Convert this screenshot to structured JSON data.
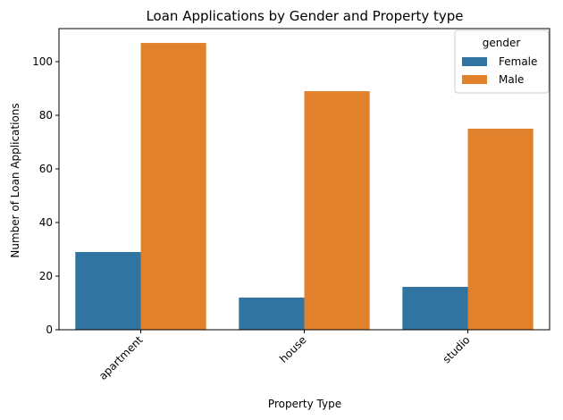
{
  "chart_data": {
    "type": "bar",
    "title": "Loan Applications by Gender and Property type",
    "xlabel": "Property Type",
    "ylabel": "Number of Loan Applications",
    "categories": [
      "apartment",
      "house",
      "studio"
    ],
    "series": [
      {
        "name": "Female",
        "values": [
          29,
          12,
          16
        ],
        "color": "#3274a1"
      },
      {
        "name": "Male",
        "values": [
          107,
          89,
          75
        ],
        "color": "#e1812c"
      }
    ],
    "ylim": [
      0,
      112.35
    ],
    "yticks": [
      0,
      20,
      40,
      60,
      80,
      100
    ],
    "xtick_rotation": 45,
    "grid": false,
    "legend": {
      "title": "gender",
      "placement": "top-right"
    }
  }
}
